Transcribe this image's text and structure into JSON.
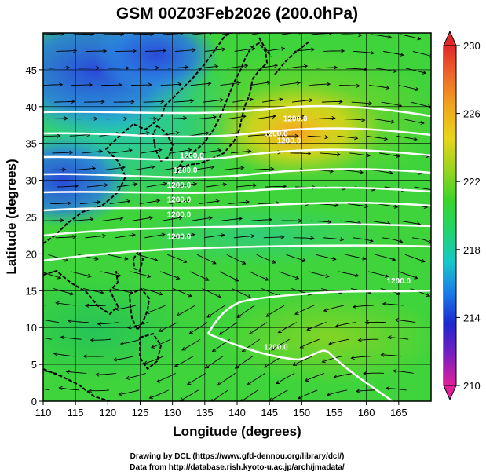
{
  "title": "GSM 00Z03Feb2026 (200.0hPa)",
  "xlabel": "Longitude (degrees)",
  "ylabel": "Latitude  (degrees)",
  "credits": [
    "Drawing by DCL (https://www.gfd-dennou.org/library/dcl/)",
    "Data from http://database.rish.kyoto-u.ac.jp/arch/jmadata/"
  ],
  "colorbar": {
    "ticks": [
      "230",
      "226",
      "222",
      "218",
      "214",
      "210"
    ],
    "min": 210,
    "max": 230,
    "colors": [
      "#e0209a",
      "#7a1fc0",
      "#1c28d0",
      "#1a7ce8",
      "#18c8c8",
      "#20d46e",
      "#3ad42a",
      "#9ad420",
      "#e8d41a",
      "#f0a81e",
      "#ee6a2a",
      "#e02a2a"
    ]
  },
  "chart_data": {
    "type": "heatmap",
    "variable": "temperature with wind streamlines and geopotential height contours",
    "xlim": [
      110,
      170
    ],
    "ylim": [
      0,
      50
    ],
    "xticks": [
      "110",
      "115",
      "120",
      "125",
      "130",
      "135",
      "140",
      "145",
      "150",
      "155",
      "160",
      "165"
    ],
    "yticks": [
      "0",
      "5",
      "10",
      "15",
      "20",
      "25",
      "30",
      "35",
      "40",
      "45"
    ],
    "grid": true,
    "contour_labels": [
      {
        "text": "1200.0",
        "lon": 149,
        "lat": 38
      },
      {
        "text": "1200.0",
        "lon": 146,
        "lat": 36
      },
      {
        "text": "1200.0",
        "lon": 148,
        "lat": 35
      },
      {
        "text": "1200.0",
        "lon": 133,
        "lat": 33
      },
      {
        "text": "1200.0",
        "lon": 132,
        "lat": 31
      },
      {
        "text": "1200.0",
        "lon": 131,
        "lat": 29
      },
      {
        "text": "1200.0",
        "lon": 131,
        "lat": 27
      },
      {
        "text": "1200.0",
        "lon": 131,
        "lat": 25
      },
      {
        "text": "1200.0",
        "lon": 131,
        "lat": 22
      },
      {
        "text": "1200.0",
        "lon": 146,
        "lat": 7
      },
      {
        "text": "1200.0",
        "lon": 165,
        "lat": 16
      }
    ]
  }
}
